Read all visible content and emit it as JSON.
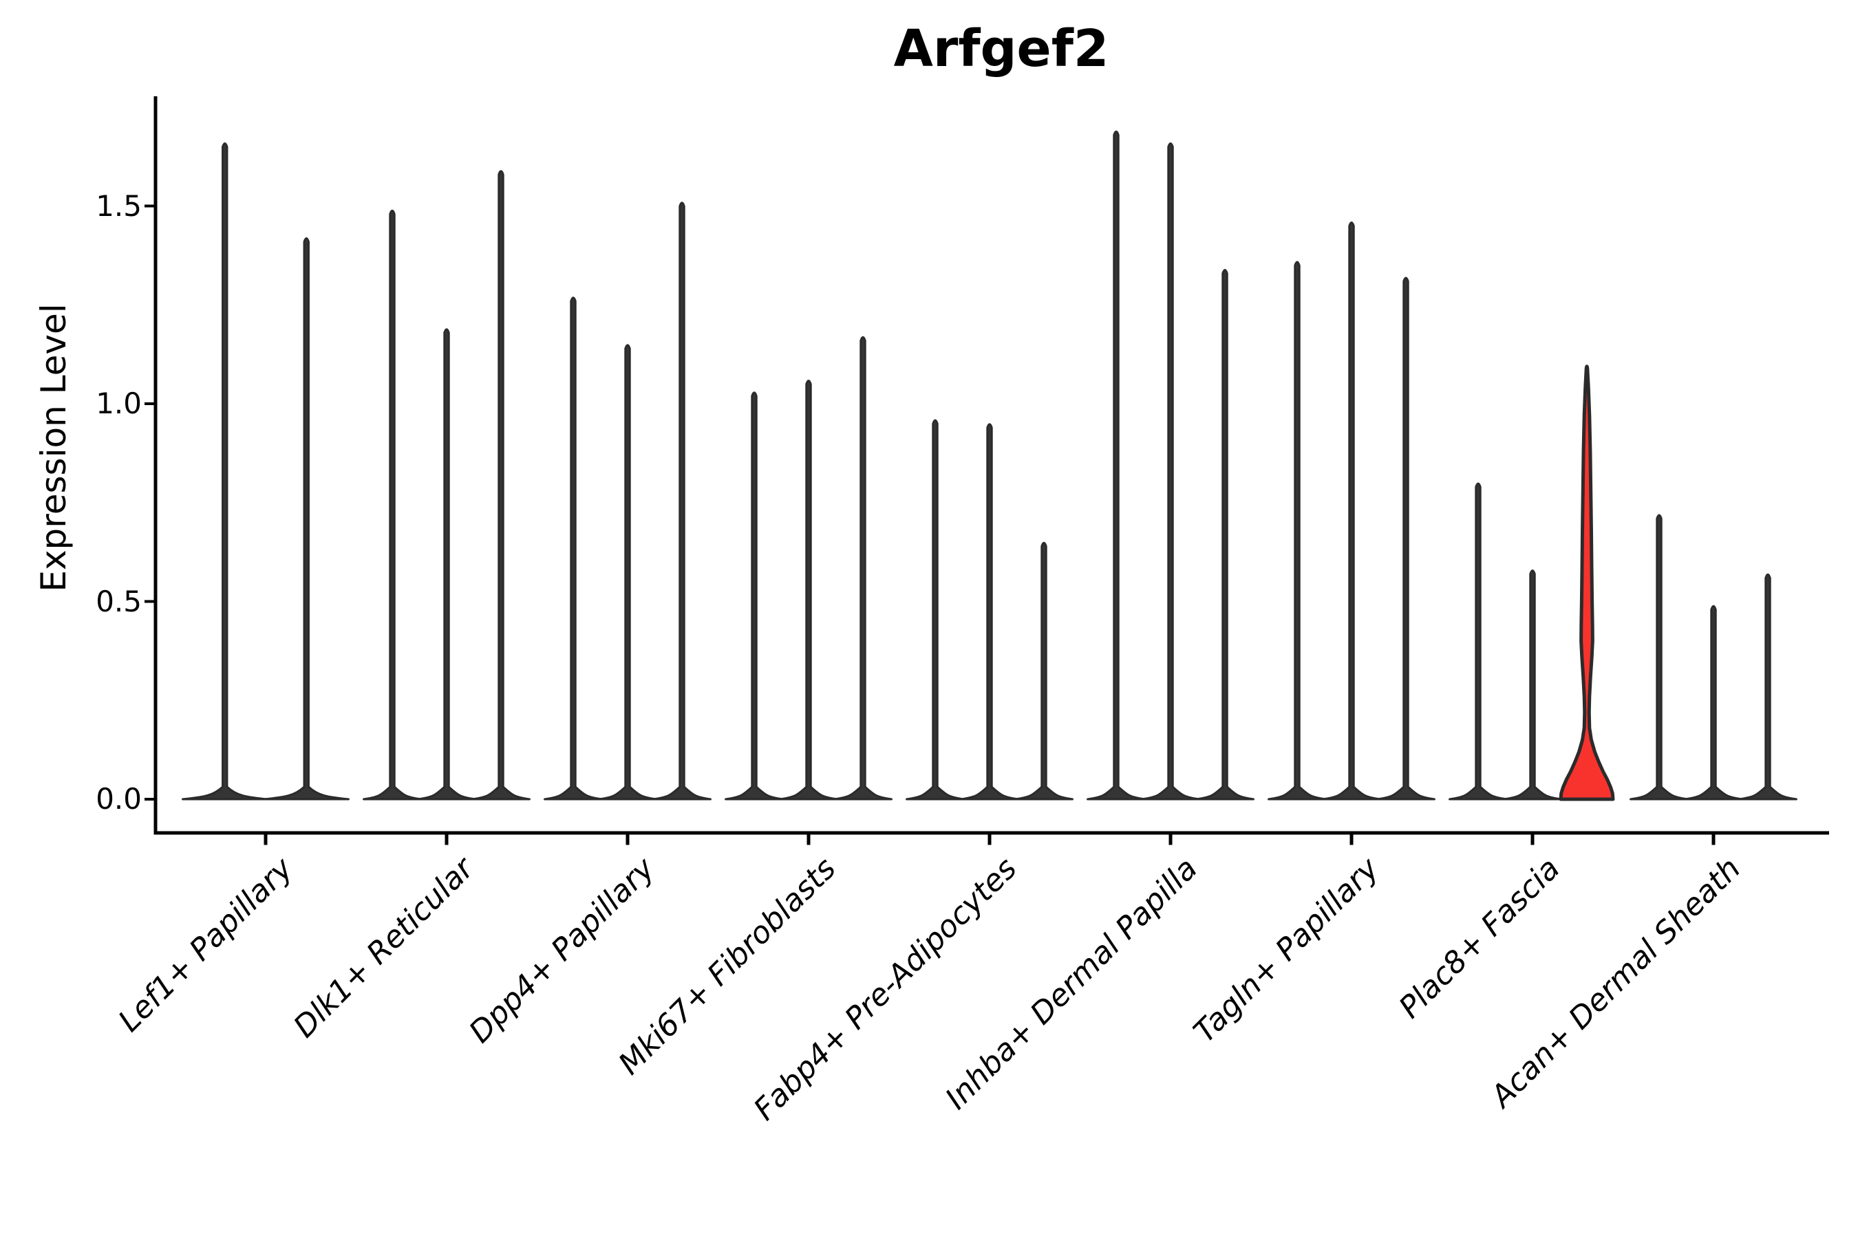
{
  "chart_data": {
    "type": "violin",
    "title": "Arfgef2",
    "ylabel": "Expression Level",
    "xlabel": "",
    "ylim": [
      -0.09,
      1.78
    ],
    "yticks": [
      0,
      0.5,
      1.0,
      1.5
    ],
    "ytick_labels": [
      "0.0",
      "0.5",
      "1.0",
      "1.5"
    ],
    "grid": false,
    "legend": "none",
    "categories": [
      "Lef1+ Papillary",
      "Dlk1+ Reticular",
      "Dpp4+ Papillary",
      "Mki67+ Fibroblasts",
      "Fabp4+ Pre-Adipocytes",
      "Inhba+ Dermal Papilla",
      "Tagln+ Papillary",
      "Plac8+ Fascia",
      "Acan+ Dermal Sheath"
    ],
    "groups": [
      {
        "category": "Lef1+ Papillary",
        "violins": [
          {
            "max": 1.66
          },
          {
            "max": 1.42
          }
        ]
      },
      {
        "category": "Dlk1+ Reticular",
        "violins": [
          {
            "max": 1.49
          },
          {
            "max": 1.19
          },
          {
            "max": 1.59
          }
        ]
      },
      {
        "category": "Dpp4+ Papillary",
        "violins": [
          {
            "max": 1.27
          },
          {
            "max": 1.15
          },
          {
            "max": 1.51
          }
        ]
      },
      {
        "category": "Mki67+ Fibroblasts",
        "violins": [
          {
            "max": 1.03
          },
          {
            "max": 1.06
          },
          {
            "max": 1.17
          }
        ]
      },
      {
        "category": "Fabp4+ Pre-Adipocytes",
        "violins": [
          {
            "max": 0.96
          },
          {
            "max": 0.95
          },
          {
            "max": 0.65
          }
        ]
      },
      {
        "category": "Inhba+ Dermal Papilla",
        "violins": [
          {
            "max": 1.69
          },
          {
            "max": 1.66
          },
          {
            "max": 1.34
          }
        ]
      },
      {
        "category": "Tagln+ Papillary",
        "violins": [
          {
            "max": 1.36
          },
          {
            "max": 1.46
          },
          {
            "max": 1.32
          }
        ]
      },
      {
        "category": "Plac8+ Fascia",
        "violins": [
          {
            "max": 0.8
          },
          {
            "max": 0.58
          },
          {
            "max": 1.09,
            "highlight": true,
            "profile": [
              [
                1.09,
                0.02
              ],
              [
                1.04,
                0.06
              ],
              [
                0.97,
                0.1
              ],
              [
                0.88,
                0.13
              ],
              [
                0.78,
                0.15
              ],
              [
                0.68,
                0.17
              ],
              [
                0.58,
                0.185
              ],
              [
                0.5,
                0.2
              ],
              [
                0.44,
                0.215
              ],
              [
                0.4,
                0.22
              ],
              [
                0.36,
                0.19
              ],
              [
                0.31,
                0.14
              ],
              [
                0.26,
                0.1
              ],
              [
                0.22,
                0.085
              ],
              [
                0.18,
                0.1
              ],
              [
                0.15,
                0.17
              ],
              [
                0.12,
                0.3
              ],
              [
                0.095,
                0.45
              ],
              [
                0.07,
                0.62
              ],
              [
                0.05,
                0.78
              ],
              [
                0.03,
                0.91
              ],
              [
                0.015,
                0.98
              ],
              [
                0.0,
                1.0
              ]
            ]
          }
        ]
      },
      {
        "category": "Acan+ Dermal Sheath",
        "violins": [
          {
            "max": 0.72
          },
          {
            "max": 0.49
          },
          {
            "max": 0.57
          }
        ]
      }
    ],
    "colors": {
      "violin_fill": "#353535",
      "violin_edge": "#2b2b2b",
      "highlight_fill": "#f8332e",
      "axis": "#000000",
      "text": "#000000"
    }
  }
}
